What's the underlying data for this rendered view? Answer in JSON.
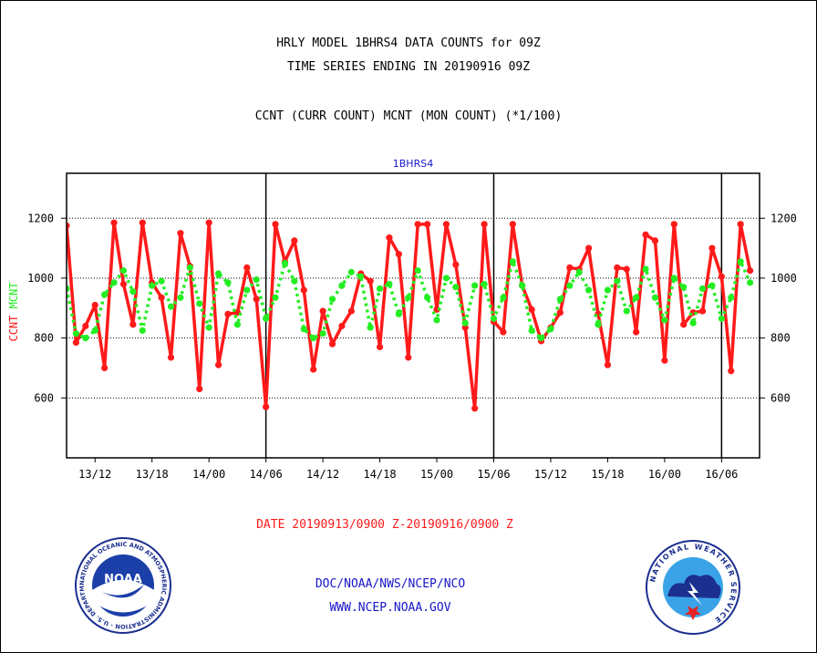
{
  "header": {
    "line1": "HRLY MODEL 1BHRS4 DATA COUNTS for 09Z",
    "line2": "TIME SERIES ENDING IN 20190916 09Z",
    "line3": "CCNT (CURR COUNT) MCNT (MON COUNT) (*1/100)"
  },
  "footer": {
    "agency": "DOC/NOAA/NWS/NCEP/NCO",
    "website": "WWW.NCEP.NOAA.GOV"
  },
  "logos": {
    "noaa_text": "NOAA",
    "noaa_ring": "NATIONAL OCEANIC AND ATMOSPHERIC ADMINISTRATION · U.S. DEPARTMENT OF COMMERCE ·",
    "nws_ring": "NATIONAL WEATHER SERVICE"
  },
  "colors": {
    "ccnt": "#ff1a1a",
    "mcnt": "#22ee22",
    "label_blue": "#1515c8",
    "grid": "#000000"
  },
  "chart_data": {
    "type": "line",
    "title": "1BHRS4",
    "xlabel": "DATE 20190913/0900 Z-20190916/0900 Z",
    "ylabel_left": "CCNT",
    "ylabel_right": "MCNT",
    "ylim": [
      400,
      1350
    ],
    "yticks": [
      600,
      800,
      1000,
      1200
    ],
    "xlim": [
      9,
      82
    ],
    "x_ticks": [
      {
        "x": 12,
        "label": "13/12"
      },
      {
        "x": 18,
        "label": "13/18"
      },
      {
        "x": 24,
        "label": "14/00"
      },
      {
        "x": 30,
        "label": "14/06"
      },
      {
        "x": 36,
        "label": "14/12"
      },
      {
        "x": 42,
        "label": "14/18"
      },
      {
        "x": 48,
        "label": "15/00"
      },
      {
        "x": 54,
        "label": "15/06"
      },
      {
        "x": 60,
        "label": "15/12"
      },
      {
        "x": 66,
        "label": "15/18"
      },
      {
        "x": 72,
        "label": "16/00"
      },
      {
        "x": 78,
        "label": "16/06"
      }
    ],
    "day_boundaries": [
      30,
      54,
      78
    ],
    "grid": "horizontal",
    "x": [
      9,
      10,
      11,
      12,
      13,
      14,
      15,
      16,
      17,
      18,
      19,
      20,
      21,
      22,
      23,
      24,
      25,
      26,
      27,
      28,
      29,
      30,
      31,
      32,
      33,
      34,
      35,
      36,
      37,
      38,
      39,
      40,
      41,
      42,
      43,
      44,
      45,
      46,
      47,
      48,
      49,
      50,
      51,
      52,
      53,
      54,
      55,
      56,
      57,
      58,
      59,
      60,
      61,
      62,
      63,
      64,
      65,
      66,
      67,
      68,
      69,
      70,
      71,
      72,
      73,
      74,
      75,
      76,
      77,
      78,
      79,
      80,
      81
    ],
    "series": [
      {
        "name": "CCNT",
        "color": "#ff1a1a",
        "values": [
          1175,
          785,
          840,
          910,
          700,
          1185,
          980,
          845,
          1185,
          985,
          935,
          735,
          1150,
          1040,
          630,
          1185,
          710,
          880,
          885,
          1035,
          930,
          570,
          1180,
          1055,
          1125,
          960,
          695,
          890,
          780,
          840,
          890,
          1015,
          990,
          770,
          1135,
          1080,
          735,
          1180,
          1180,
          895,
          1180,
          1045,
          835,
          565,
          1180,
          855,
          820,
          1180,
          975,
          895,
          790,
          835,
          885,
          1035,
          1030,
          1100,
          880,
          710,
          1035,
          1030,
          820,
          1145,
          1125,
          725,
          1180,
          845,
          885,
          890,
          1100,
          1005,
          690,
          1180,
          1025
        ]
      },
      {
        "name": "MCNT",
        "color": "#22ee22",
        "values": [
          965,
          815,
          800,
          825,
          945,
          985,
          1025,
          955,
          825,
          975,
          990,
          905,
          935,
          1035,
          915,
          835,
          1015,
          985,
          845,
          960,
          995,
          865,
          935,
          1050,
          990,
          830,
          800,
          815,
          930,
          975,
          1020,
          1005,
          835,
          965,
          980,
          880,
          935,
          1025,
          935,
          860,
          1000,
          970,
          850,
          975,
          980,
          865,
          935,
          1055,
          975,
          825,
          800,
          830,
          930,
          975,
          1020,
          960,
          845,
          960,
          990,
          890,
          935,
          1030,
          935,
          860,
          1000,
          970,
          850,
          965,
          975,
          865,
          935,
          1055,
          985
        ]
      }
    ]
  }
}
